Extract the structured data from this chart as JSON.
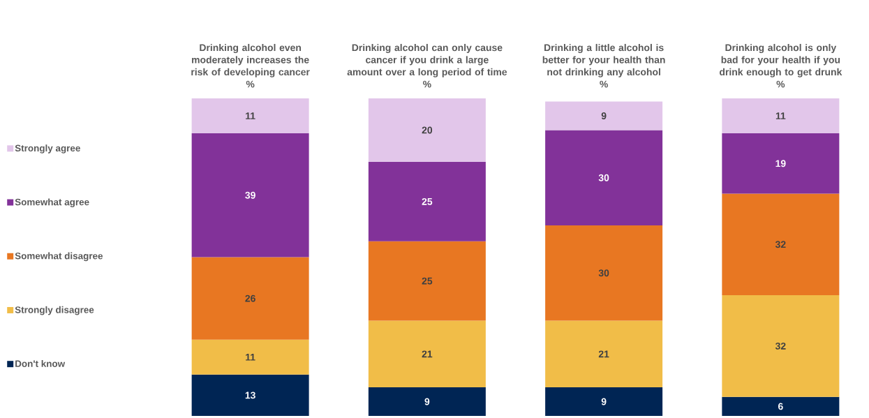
{
  "chart_data": {
    "type": "bar",
    "stacked": true,
    "data_labels": true,
    "legend": "left",
    "tick_labels": "x",
    "categories": [
      "Drinking alcohol even moderately increases the risk of developing cancer",
      "Drinking alcohol can only cause cancer if you drink a large amount over a long period of time",
      "Drinking a little alcohol is better for your health than not drinking any alcohol",
      "Drinking alcohol is only bad for your health if you drink enough to get drunk"
    ],
    "annotations": [
      "%",
      "%",
      "%",
      "%"
    ],
    "series": [
      {
        "name": "Don't know",
        "color": "#002554",
        "values": [
          13,
          9,
          9,
          6
        ]
      },
      {
        "name": "Strongly disagree",
        "color": "#f1bd48",
        "values": [
          11,
          21,
          21,
          32
        ]
      },
      {
        "name": "Somewhat disagree",
        "color": "#e87722",
        "values": [
          26,
          25,
          30,
          32
        ]
      },
      {
        "name": "Somewhat agree",
        "color": "#823299",
        "values": [
          39,
          25,
          30,
          19
        ]
      },
      {
        "name": "Strongly agree",
        "color": "#e2c6ea",
        "values": [
          11,
          20,
          9,
          11
        ]
      }
    ]
  }
}
